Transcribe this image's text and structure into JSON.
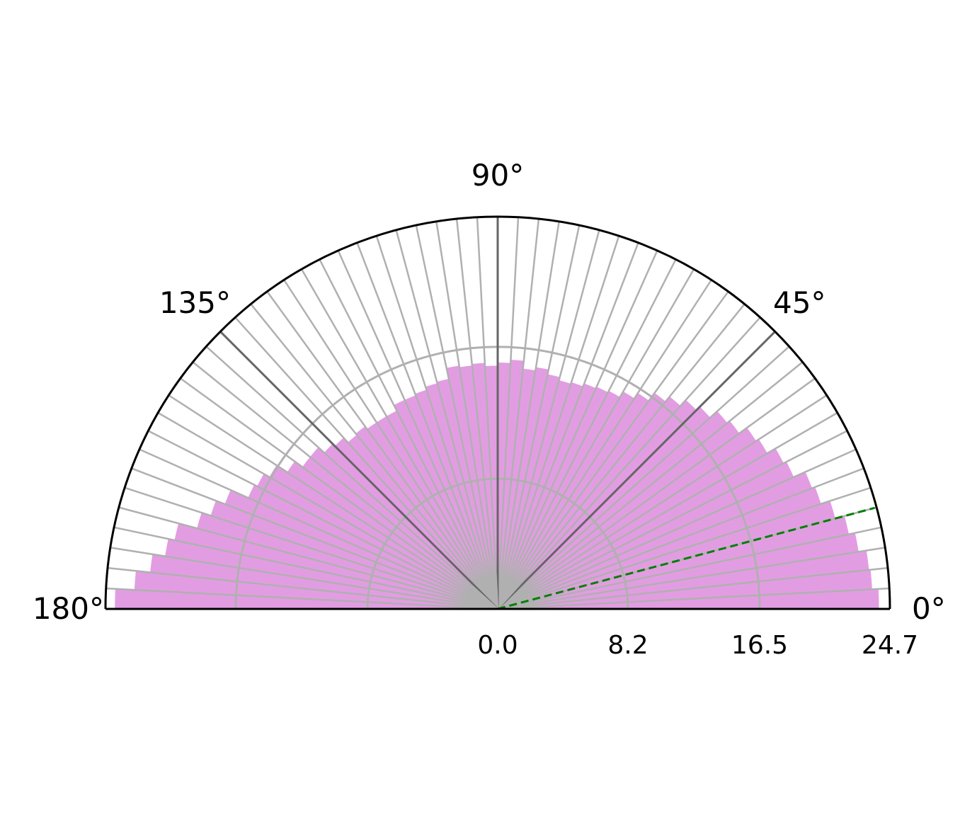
{
  "chart_data": {
    "type": "polar-bar",
    "title": "",
    "theta_range_deg": [
      0,
      180
    ],
    "r_max": 24.7,
    "theta_ticks": [
      "0°",
      "45°",
      "90°",
      "135°",
      "180°"
    ],
    "theta_tick_values_deg": [
      0,
      45,
      90,
      135,
      180
    ],
    "r_ticks": [
      "0.0",
      "8.2",
      "16.5",
      "24.7"
    ],
    "r_tick_values": [
      0.0,
      8.2,
      16.5,
      24.7
    ],
    "bin_count": 60,
    "bin_width_deg": 3,
    "bin_start_deg": [
      0,
      3,
      6,
      9,
      12,
      15,
      18,
      21,
      24,
      27,
      30,
      33,
      36,
      39,
      42,
      45,
      48,
      51,
      54,
      57,
      60,
      63,
      66,
      69,
      72,
      75,
      78,
      81,
      84,
      87,
      90,
      93,
      96,
      99,
      102,
      105,
      108,
      111,
      114,
      117,
      120,
      123,
      126,
      129,
      132,
      135,
      138,
      141,
      144,
      147,
      150,
      153,
      156,
      159,
      162,
      165,
      168,
      171,
      174,
      177
    ],
    "values": [
      24.0,
      23.6,
      23.5,
      23.0,
      22.6,
      22.0,
      21.4,
      21.2,
      20.4,
      20.2,
      19.6,
      19.4,
      18.8,
      18.6,
      18.0,
      17.7,
      17.2,
      16.8,
      16.2,
      15.8,
      15.4,
      15.3,
      15.2,
      15.0,
      14.9,
      15.1,
      15.4,
      15.2,
      15.7,
      15.5,
      15.3,
      15.5,
      15.4,
      15.5,
      14.8,
      14.7,
      14.5,
      14.4,
      14.4,
      14.0,
      14.0,
      14.0,
      14.2,
      14.1,
      14.5,
      14.7,
      15.2,
      15.2,
      15.8,
      16.6,
      17.0,
      17.2,
      18.4,
      19.0,
      19.6,
      20.8,
      21.2,
      22.0,
      22.9,
      24.1
    ],
    "bar_color": "#e29de2",
    "grid": true,
    "grid_color": "#b0b0b0",
    "major_spoke_color": "#666666",
    "reference_line": {
      "angle_deg": 15,
      "color": "#008000",
      "style": "dashed"
    }
  }
}
